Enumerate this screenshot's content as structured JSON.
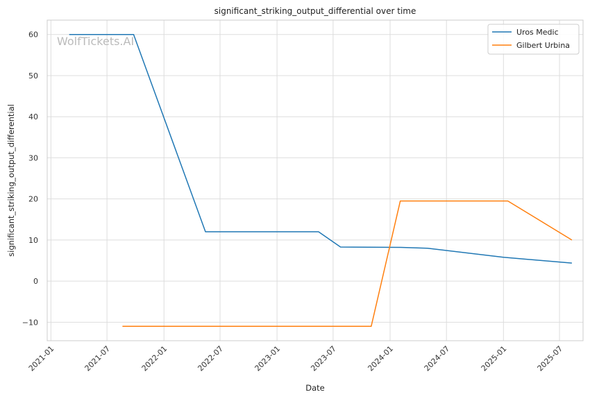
{
  "chart_data": {
    "type": "line",
    "title": "significant_striking_output_differential over time",
    "xlabel": "Date",
    "ylabel": "significant_striking_output_differential",
    "watermark": "WolfTickets.AI",
    "x_ticks": [
      "2021-01",
      "2021-07",
      "2022-01",
      "2022-07",
      "2023-01",
      "2023-07",
      "2024-01",
      "2024-07",
      "2025-01",
      "2025-07"
    ],
    "y_ticks": [
      -10,
      0,
      10,
      20,
      30,
      40,
      50,
      60
    ],
    "xlim": [
      "2020-12-20",
      "2025-09-15"
    ],
    "ylim": [
      -14.5,
      63.5
    ],
    "grid": true,
    "legend_position": "top-right",
    "series": [
      {
        "name": "Uros Medic",
        "color": "#1f77b4",
        "points": [
          [
            "2021-03-01",
            60
          ],
          [
            "2021-09-25",
            60
          ],
          [
            "2022-05-15",
            12
          ],
          [
            "2023-05-15",
            12
          ],
          [
            "2023-07-25",
            8.3
          ],
          [
            "2024-02-05",
            8.2
          ],
          [
            "2024-05-01",
            8.0
          ],
          [
            "2025-01-01",
            5.8
          ],
          [
            "2025-08-10",
            4.4
          ]
        ]
      },
      {
        "name": "Gilbert Urbina",
        "color": "#ff7f0e",
        "points": [
          [
            "2021-08-20",
            -11
          ],
          [
            "2023-11-01",
            -11
          ],
          [
            "2024-02-03",
            19.5
          ],
          [
            "2025-01-15",
            19.5
          ],
          [
            "2025-08-10",
            10
          ]
        ]
      }
    ]
  }
}
